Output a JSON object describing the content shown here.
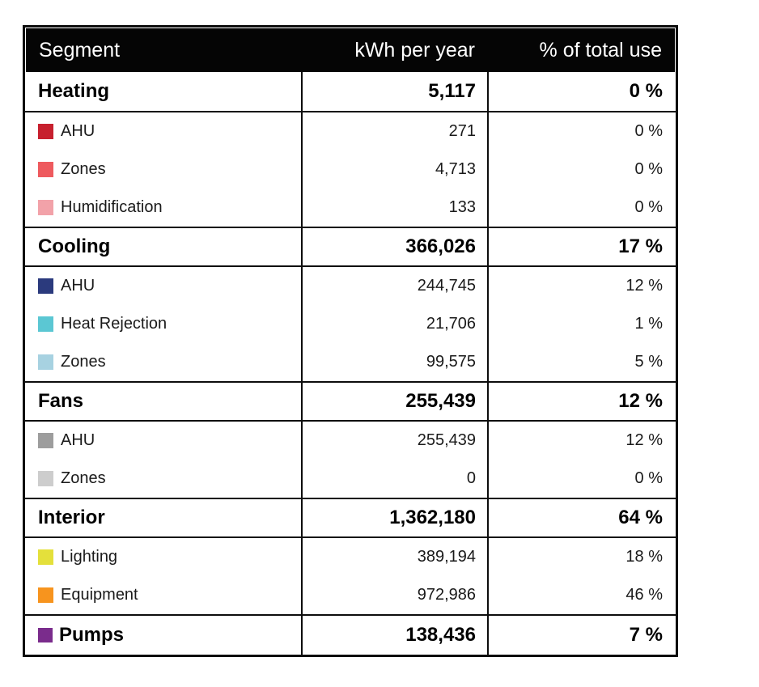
{
  "colors": {
    "header_background": "#050505",
    "header_text": "#ffffff",
    "border": "#0d0d0d",
    "page_background": "#ffffff"
  },
  "table": {
    "columns": [
      "Segment",
      "kWh per year",
      "% of total use"
    ],
    "groups": [
      {
        "label": "Heating",
        "kwh": "5,117",
        "pct": "0 %",
        "children": [
          {
            "label": "AHU",
            "kwh": "271",
            "pct": "0 %",
            "color": "#c7202e"
          },
          {
            "label": "Zones",
            "kwh": "4,713",
            "pct": "0 %",
            "color": "#ee5a5e"
          },
          {
            "label": "Humidification",
            "kwh": "133",
            "pct": "0 %",
            "color": "#f2a2a9"
          }
        ]
      },
      {
        "label": "Cooling",
        "kwh": "366,026",
        "pct": "17 %",
        "children": [
          {
            "label": "AHU",
            "kwh": "244,745",
            "pct": "12 %",
            "color": "#2b3a7d"
          },
          {
            "label": "Heat Rejection",
            "kwh": "21,706",
            "pct": "1 %",
            "color": "#5bc7d3"
          },
          {
            "label": "Zones",
            "kwh": "99,575",
            "pct": "5 %",
            "color": "#a7d2e1"
          }
        ]
      },
      {
        "label": "Fans",
        "kwh": "255,439",
        "pct": "12 %",
        "children": [
          {
            "label": "AHU",
            "kwh": "255,439",
            "pct": "12 %",
            "color": "#9d9d9d"
          },
          {
            "label": "Zones",
            "kwh": "0",
            "pct": "0 %",
            "color": "#cdcdcd"
          }
        ]
      },
      {
        "label": "Interior",
        "kwh": "1,362,180",
        "pct": "64 %",
        "children": [
          {
            "label": "Lighting",
            "kwh": "389,194",
            "pct": "18 %",
            "color": "#e4e03b"
          },
          {
            "label": "Equipment",
            "kwh": "972,986",
            "pct": "46 %",
            "color": "#f7941e"
          }
        ]
      },
      {
        "label": "Pumps",
        "kwh": "138,436",
        "pct": "7 %",
        "color": "#7a2c8c",
        "children": []
      }
    ]
  },
  "chart_data": {
    "type": "table",
    "columns": [
      "Segment",
      "kWh per year",
      "% of total use"
    ],
    "rows": [
      {
        "segment": "Heating",
        "group": true,
        "parent": null,
        "kwh_per_year": 5117,
        "pct_of_total": 0,
        "color": null
      },
      {
        "segment": "AHU",
        "group": false,
        "parent": "Heating",
        "kwh_per_year": 271,
        "pct_of_total": 0,
        "color": "#c7202e"
      },
      {
        "segment": "Zones",
        "group": false,
        "parent": "Heating",
        "kwh_per_year": 4713,
        "pct_of_total": 0,
        "color": "#ee5a5e"
      },
      {
        "segment": "Humidification",
        "group": false,
        "parent": "Heating",
        "kwh_per_year": 133,
        "pct_of_total": 0,
        "color": "#f2a2a9"
      },
      {
        "segment": "Cooling",
        "group": true,
        "parent": null,
        "kwh_per_year": 366026,
        "pct_of_total": 17,
        "color": null
      },
      {
        "segment": "AHU",
        "group": false,
        "parent": "Cooling",
        "kwh_per_year": 244745,
        "pct_of_total": 12,
        "color": "#2b3a7d"
      },
      {
        "segment": "Heat Rejection",
        "group": false,
        "parent": "Cooling",
        "kwh_per_year": 21706,
        "pct_of_total": 1,
        "color": "#5bc7d3"
      },
      {
        "segment": "Zones",
        "group": false,
        "parent": "Cooling",
        "kwh_per_year": 99575,
        "pct_of_total": 5,
        "color": "#a7d2e1"
      },
      {
        "segment": "Fans",
        "group": true,
        "parent": null,
        "kwh_per_year": 255439,
        "pct_of_total": 12,
        "color": null
      },
      {
        "segment": "AHU",
        "group": false,
        "parent": "Fans",
        "kwh_per_year": 255439,
        "pct_of_total": 12,
        "color": "#9d9d9d"
      },
      {
        "segment": "Zones",
        "group": false,
        "parent": "Fans",
        "kwh_per_year": 0,
        "pct_of_total": 0,
        "color": "#cdcdcd"
      },
      {
        "segment": "Interior",
        "group": true,
        "parent": null,
        "kwh_per_year": 1362180,
        "pct_of_total": 64,
        "color": null
      },
      {
        "segment": "Lighting",
        "group": false,
        "parent": "Interior",
        "kwh_per_year": 389194,
        "pct_of_total": 18,
        "color": "#e4e03b"
      },
      {
        "segment": "Equipment",
        "group": false,
        "parent": "Interior",
        "kwh_per_year": 972986,
        "pct_of_total": 46,
        "color": "#f7941e"
      },
      {
        "segment": "Pumps",
        "group": true,
        "parent": null,
        "kwh_per_year": 138436,
        "pct_of_total": 7,
        "color": "#7a2c8c"
      }
    ]
  }
}
